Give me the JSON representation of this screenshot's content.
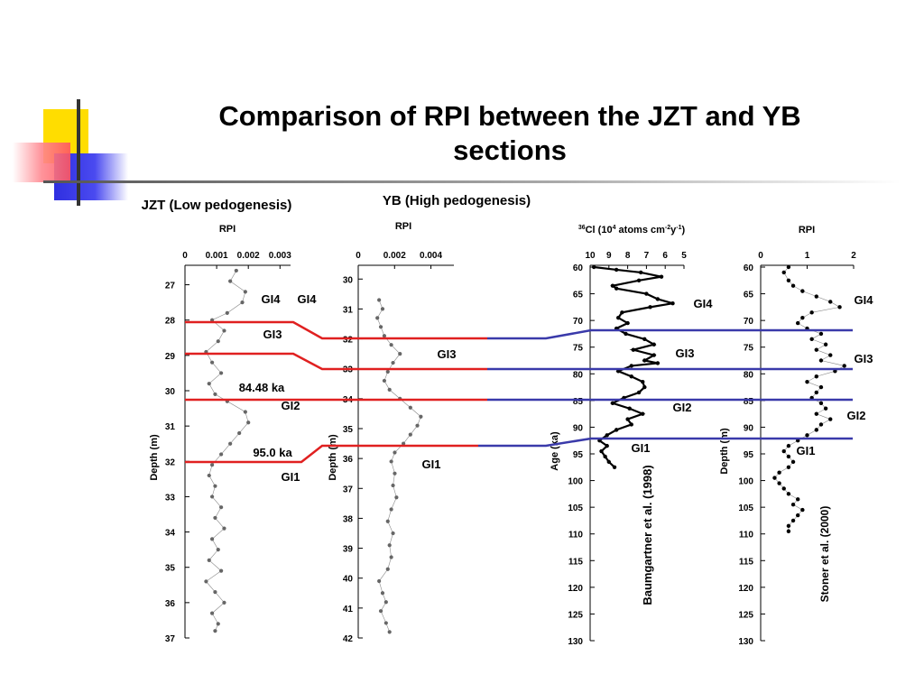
{
  "slide": {
    "title_line1": "Comparison of RPI between the JZT and YB",
    "title_line2": "sections"
  },
  "colors": {
    "correlation_red": "#e02020",
    "correlation_blue": "#3a3aaa",
    "deco_yellow": "#ffdd00",
    "deco_blue": "#2f2fe0",
    "deco_red": "#ff5560"
  },
  "chart_data": [
    {
      "type": "scatter",
      "title": "JZT (Low pedogenesis)",
      "xlabel": "RPI",
      "ylabel": "Depth (m)",
      "xlim": [
        0,
        0.0035
      ],
      "ylim": [
        37,
        26.5
      ],
      "xticks": [
        "0",
        "0.001",
        "0.002",
        "0.003"
      ],
      "yticks": [
        "27",
        "28",
        "29",
        "30",
        "31",
        "32",
        "33",
        "34",
        "35",
        "36",
        "37"
      ],
      "annotations": [
        "GI4",
        "GI4",
        "GI3",
        "84.48 ka",
        "GI2",
        "95.0 ka",
        "GI1"
      ],
      "profile": [
        [
          26.6,
          0.0017
        ],
        [
          26.9,
          0.0015
        ],
        [
          27.2,
          0.002
        ],
        [
          27.5,
          0.0019
        ],
        [
          27.8,
          0.0014
        ],
        [
          28.0,
          0.0009
        ],
        [
          28.3,
          0.0013
        ],
        [
          28.6,
          0.0011
        ],
        [
          28.9,
          0.0007
        ],
        [
          29.2,
          0.0009
        ],
        [
          29.5,
          0.0012
        ],
        [
          29.8,
          0.0008
        ],
        [
          30.1,
          0.001
        ],
        [
          30.3,
          0.0014
        ],
        [
          30.6,
          0.002
        ],
        [
          30.9,
          0.0021
        ],
        [
          31.2,
          0.0018
        ],
        [
          31.5,
          0.0015
        ],
        [
          31.8,
          0.0012
        ],
        [
          32.1,
          0.0009
        ],
        [
          32.4,
          0.0008
        ],
        [
          32.7,
          0.001
        ],
        [
          33.0,
          0.0009
        ],
        [
          33.3,
          0.0012
        ],
        [
          33.6,
          0.001
        ],
        [
          33.9,
          0.0013
        ],
        [
          34.2,
          0.0009
        ],
        [
          34.5,
          0.0011
        ],
        [
          34.8,
          0.0008
        ],
        [
          35.1,
          0.0012
        ],
        [
          35.4,
          0.0007
        ],
        [
          35.7,
          0.001
        ],
        [
          36.0,
          0.0013
        ],
        [
          36.3,
          0.0009
        ],
        [
          36.6,
          0.0011
        ],
        [
          36.8,
          0.001
        ]
      ]
    },
    {
      "type": "scatter",
      "title": "YB (High pedogenesis)",
      "xlabel": "RPI",
      "ylabel": "Depth (m)",
      "xlim": [
        0,
        0.0055
      ],
      "ylim": [
        42,
        29.6
      ],
      "xticks": [
        "0",
        "0.002",
        "0.004"
      ],
      "yticks": [
        "30",
        "31",
        "32",
        "33",
        "34",
        "35",
        "36",
        "37",
        "38",
        "39",
        "40",
        "41",
        "42"
      ],
      "annotations": [
        "GI3",
        "GI1"
      ],
      "profile": [
        [
          30.7,
          0.0012
        ],
        [
          31.0,
          0.0014
        ],
        [
          31.3,
          0.0011
        ],
        [
          31.6,
          0.0013
        ],
        [
          31.9,
          0.0015
        ],
        [
          32.2,
          0.0019
        ],
        [
          32.5,
          0.0024
        ],
        [
          32.8,
          0.002
        ],
        [
          33.1,
          0.0017
        ],
        [
          33.4,
          0.0015
        ],
        [
          33.7,
          0.0018
        ],
        [
          34.0,
          0.0024
        ],
        [
          34.3,
          0.003
        ],
        [
          34.6,
          0.0036
        ],
        [
          34.9,
          0.0034
        ],
        [
          35.2,
          0.003
        ],
        [
          35.5,
          0.0026
        ],
        [
          35.8,
          0.0021
        ],
        [
          36.1,
          0.0019
        ],
        [
          36.5,
          0.0021
        ],
        [
          36.9,
          0.002
        ],
        [
          37.3,
          0.0022
        ],
        [
          37.7,
          0.0019
        ],
        [
          38.1,
          0.0017
        ],
        [
          38.5,
          0.002
        ],
        [
          38.9,
          0.0018
        ],
        [
          39.3,
          0.0019
        ],
        [
          39.7,
          0.0017
        ],
        [
          40.1,
          0.0012
        ],
        [
          40.5,
          0.0014
        ],
        [
          40.8,
          0.0016
        ],
        [
          41.1,
          0.0013
        ],
        [
          41.5,
          0.0016
        ],
        [
          41.8,
          0.0018
        ]
      ]
    },
    {
      "type": "line",
      "title": "36Cl (10⁴ atoms cm⁻²y⁻¹)",
      "title_parts": [
        "36",
        "Cl (10",
        "4",
        " atoms cm",
        "-2",
        "y",
        "-1",
        ")"
      ],
      "xlabel": "36Cl (10⁴ atoms cm⁻²y⁻¹)",
      "ylabel": "Age (ka)",
      "xlim": [
        10,
        5
      ],
      "ylim": [
        130,
        60
      ],
      "xticks": [
        "10",
        "9",
        "8",
        "7",
        "6",
        "5"
      ],
      "yticks": [
        "60",
        "65",
        "70",
        "75",
        "80",
        "85",
        "90",
        "95",
        "100",
        "105",
        "110",
        "115",
        "120",
        "125",
        "130"
      ],
      "annotations": [
        "GI4",
        "GI3",
        "GI2",
        "GI1"
      ],
      "source": "Baumgartner et al. (1998)",
      "profile": [
        [
          60.0,
          9.8
        ],
        [
          60.5,
          8.6
        ],
        [
          61.0,
          7.3
        ],
        [
          61.8,
          6.2
        ],
        [
          62.5,
          7.4
        ],
        [
          63.5,
          8.8
        ],
        [
          64.0,
          8.6
        ],
        [
          65.0,
          7.0
        ],
        [
          66.0,
          6.4
        ],
        [
          66.8,
          5.6
        ],
        [
          67.5,
          6.8
        ],
        [
          68.5,
          8.3
        ],
        [
          69.5,
          8.5
        ],
        [
          70.5,
          8.0
        ],
        [
          71.5,
          8.6
        ],
        [
          72.5,
          8.1
        ],
        [
          73.5,
          7.1
        ],
        [
          74.5,
          6.6
        ],
        [
          75.5,
          7.7
        ],
        [
          76.5,
          6.6
        ],
        [
          77.5,
          7.1
        ],
        [
          78.0,
          6.4
        ],
        [
          78.5,
          7.8
        ],
        [
          79.5,
          8.5
        ],
        [
          80.5,
          7.8
        ],
        [
          81.5,
          7.2
        ],
        [
          82.5,
          7.1
        ],
        [
          83.5,
          7.4
        ],
        [
          84.5,
          8.2
        ],
        [
          85.5,
          8.8
        ],
        [
          86.5,
          7.9
        ],
        [
          87.5,
          7.2
        ],
        [
          88.5,
          8.0
        ],
        [
          89.5,
          7.8
        ],
        [
          90.5,
          8.6
        ],
        [
          91.5,
          9.1
        ],
        [
          92.5,
          9.5
        ],
        [
          93.5,
          9.1
        ],
        [
          94.5,
          9.4
        ],
        [
          95.5,
          9.2
        ],
        [
          96.5,
          9.0
        ],
        [
          97.5,
          8.7
        ]
      ]
    },
    {
      "type": "scatter",
      "title": "RPI",
      "xlabel": "RPI",
      "ylabel": "Depth (m)",
      "xlim": [
        0,
        2
      ],
      "ylim": [
        130,
        60
      ],
      "xticks": [
        "0",
        "1",
        "2"
      ],
      "yticks": [
        "60",
        "65",
        "70",
        "75",
        "80",
        "85",
        "90",
        "95",
        "100",
        "105",
        "110",
        "115",
        "120",
        "125",
        "130"
      ],
      "annotations": [
        "GI4",
        "GI3",
        "GI2",
        "GI1"
      ],
      "source": "Stoner et al. (2000)",
      "profile": [
        [
          60.0,
          0.6
        ],
        [
          61.0,
          0.5
        ],
        [
          62.5,
          0.6
        ],
        [
          63.5,
          0.7
        ],
        [
          64.5,
          0.9
        ],
        [
          65.5,
          1.2
        ],
        [
          66.5,
          1.5
        ],
        [
          67.5,
          1.7
        ],
        [
          68.5,
          1.1
        ],
        [
          69.5,
          0.9
        ],
        [
          70.5,
          0.8
        ],
        [
          71.5,
          1.0
        ],
        [
          72.5,
          1.3
        ],
        [
          73.5,
          1.1
        ],
        [
          74.5,
          1.4
        ],
        [
          75.5,
          1.2
        ],
        [
          76.5,
          1.5
        ],
        [
          77.5,
          1.3
        ],
        [
          78.5,
          1.8
        ],
        [
          79.5,
          1.6
        ],
        [
          80.5,
          1.2
        ],
        [
          81.5,
          1.0
        ],
        [
          82.5,
          1.3
        ],
        [
          83.5,
          1.2
        ],
        [
          84.5,
          1.1
        ],
        [
          85.5,
          1.3
        ],
        [
          86.5,
          1.4
        ],
        [
          87.5,
          1.2
        ],
        [
          88.5,
          1.5
        ],
        [
          89.5,
          1.3
        ],
        [
          90.5,
          1.2
        ],
        [
          91.5,
          1.0
        ],
        [
          92.5,
          0.8
        ],
        [
          93.5,
          0.6
        ],
        [
          94.5,
          0.5
        ],
        [
          95.5,
          0.6
        ],
        [
          96.5,
          0.7
        ],
        [
          97.5,
          0.6
        ],
        [
          98.5,
          0.4
        ],
        [
          99.5,
          0.3
        ],
        [
          100.5,
          0.4
        ],
        [
          101.5,
          0.5
        ],
        [
          102.5,
          0.6
        ],
        [
          103.5,
          0.8
        ],
        [
          104.5,
          0.7
        ],
        [
          105.5,
          0.9
        ],
        [
          106.5,
          0.8
        ],
        [
          107.5,
          0.7
        ],
        [
          108.5,
          0.6
        ],
        [
          109.5,
          0.6
        ]
      ]
    }
  ],
  "correlation": {
    "red_labels": [
      "GI4",
      "GI3",
      "GI2",
      "GI1"
    ],
    "blue_labels": [
      "GI4",
      "GI3",
      "GI2",
      "GI1"
    ]
  }
}
